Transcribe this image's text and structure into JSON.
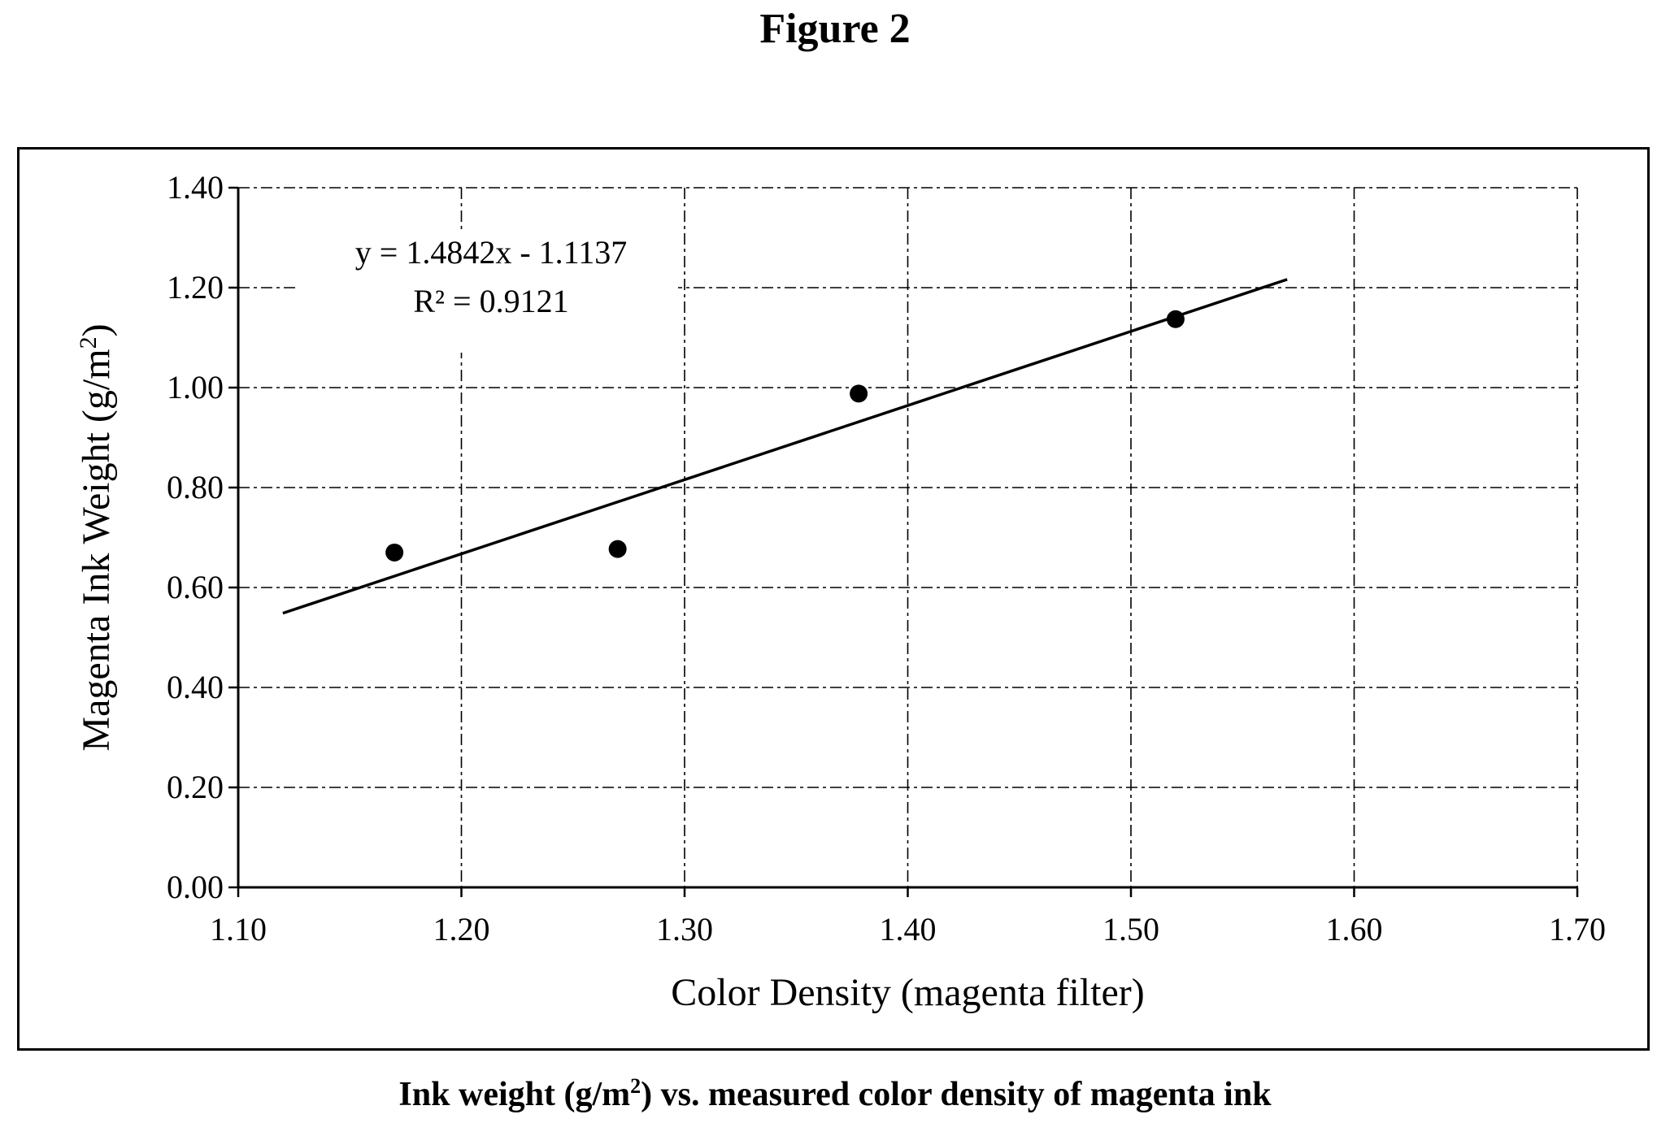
{
  "figure_title": "Figure 2",
  "caption": {
    "before": "Ink weight (g/m",
    "sup": "2",
    "after": ") vs. measured color density of magenta ink"
  },
  "chart_data": {
    "type": "scatter",
    "xlabel": "Color Density (magenta filter)",
    "ylabel": {
      "before": "Magenta Ink Weight (g/m",
      "sup": "2",
      "after": ")"
    },
    "xlim": [
      1.1,
      1.7
    ],
    "ylim": [
      0.0,
      1.4
    ],
    "x_ticks": [
      "1.10",
      "1.20",
      "1.30",
      "1.40",
      "1.50",
      "1.60",
      "1.70"
    ],
    "y_ticks": [
      "0.00",
      "0.20",
      "0.40",
      "0.60",
      "0.80",
      "1.00",
      "1.20",
      "1.40"
    ],
    "grid": true,
    "grid_style": "dashed",
    "marker_color": "#000000",
    "series": [
      {
        "x": [
          1.17,
          1.27,
          1.378,
          1.52
        ],
        "y": [
          0.67,
          0.677,
          0.988,
          1.137
        ]
      }
    ],
    "trendline": {
      "slope": 1.4842,
      "intercept": -1.1137,
      "x_range": [
        1.12,
        1.57
      ]
    },
    "annotations": {
      "equation": "y = 1.4842x - 1.1137",
      "r_squared": "R² = 0.9121"
    }
  }
}
